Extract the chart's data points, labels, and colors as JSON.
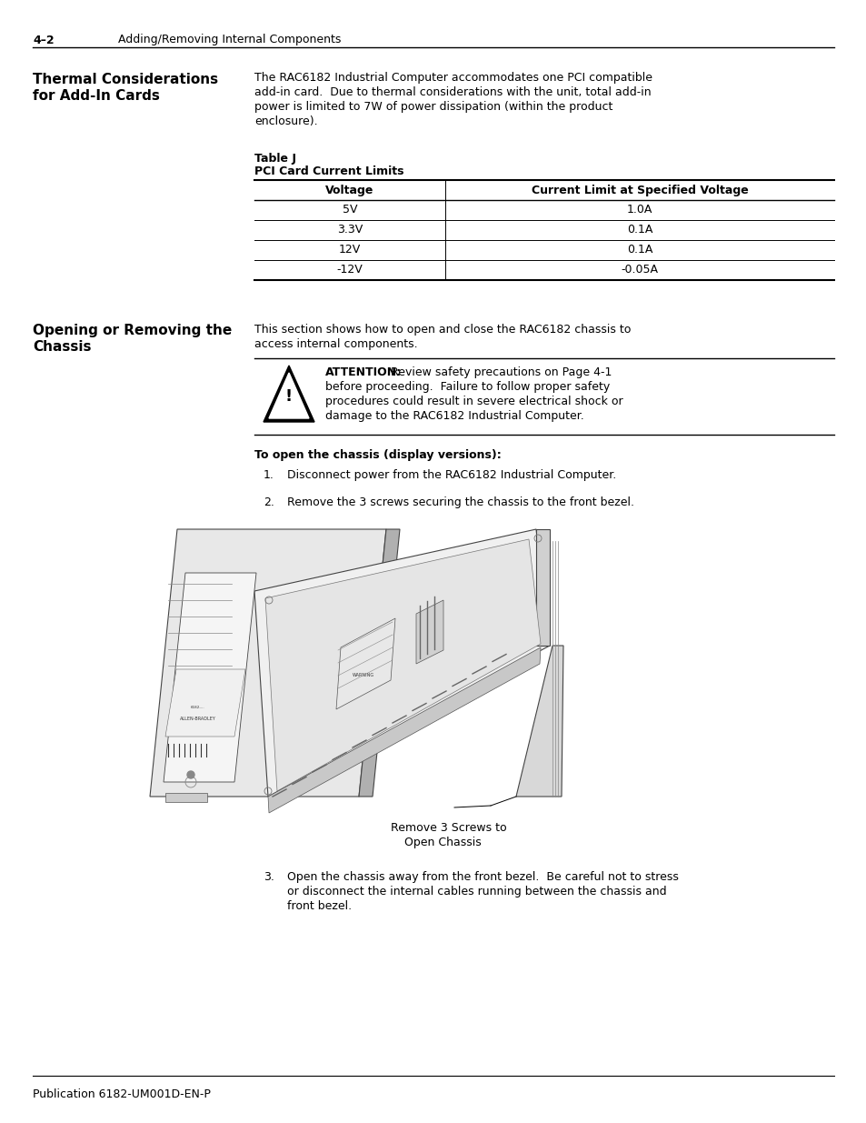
{
  "bg_color": "#ffffff",
  "header_text_left": "4–2",
  "header_text_right": "Adding/Removing Internal Components",
  "section1_heading_line1": "Thermal Considerations",
  "section1_heading_line2": "for Add-In Cards",
  "body1_lines": [
    "The RAC6182 Industrial Computer accommodates one PCI compatible",
    "add-in card.  Due to thermal considerations with the unit, total add-in",
    "power is limited to 7W of power dissipation (within the product",
    "enclosure)."
  ],
  "table_label1": "Table J",
  "table_label2": "PCI Card Current Limits",
  "table_col1_header": "Voltage",
  "table_col2_header": "Current Limit at Specified Voltage",
  "table_rows": [
    [
      "5V",
      "1.0A"
    ],
    [
      "3.3V",
      "0.1A"
    ],
    [
      "12V",
      "0.1A"
    ],
    [
      "-12V",
      "-0.05A"
    ]
  ],
  "section2_heading_line1": "Opening or Removing the",
  "section2_heading_line2": "Chassis",
  "section2_body_lines": [
    "This section shows how to open and close the RAC6182 chassis to",
    "access internal components."
  ],
  "attention_bold": "ATTENTION:",
  "attention_rest_line1": " Review safety precautions on Page 4-1",
  "attention_lines": [
    "before proceeding.  Failure to follow proper safety",
    "procedures could result in severe electrical shock or",
    "damage to the RAC6182 Industrial Computer."
  ],
  "steps_heading": "To open the chassis (display versions):",
  "step1": "Disconnect power from the RAC6182 Industrial Computer.",
  "step2": "Remove the 3 screws securing the chassis to the front bezel.",
  "diagram_caption1": "Remove 3 Screws to",
  "diagram_caption2": "Open Chassis",
  "step3_lines": [
    "Open the chassis away from the front bezel.  Be careful not to stress",
    "or disconnect the internal cables running between the chassis and",
    "front bezel."
  ],
  "footer_text": "Publication 6182-UM001D-EN-P"
}
